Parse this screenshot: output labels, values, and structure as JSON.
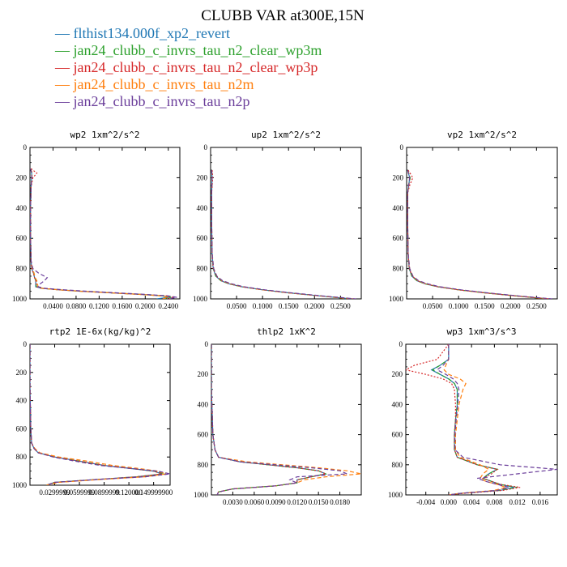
{
  "figure": {
    "title": "CLUBB VAR at300E,15N",
    "legend": [
      {
        "label": "flthist134.000f_xp2_revert",
        "color": "#1f77b4"
      },
      {
        "label": "jan24_clubb_c_invrs_tau_n2_clear_wp3m",
        "color": "#2ca02c"
      },
      {
        "label": "jan24_clubb_c_invrs_tau_n2_clear_wp3p",
        "color": "#d62728"
      },
      {
        "label": "jan24_clubb_c_invrs_tau_n2m",
        "color": "#ff7f0e"
      },
      {
        "label": "jan24_clubb_c_invrs_tau_n2p",
        "color": "#6a3d9a"
      }
    ],
    "legend_dash": "—"
  },
  "chart_data": [
    {
      "type": "line",
      "title": "wp2  1xm^2/s^2",
      "xlim": [
        0,
        0.26
      ],
      "ylim": [
        1000,
        0
      ],
      "y_inverted": true,
      "x_ticks": [
        0.04,
        0.08,
        0.12,
        0.16,
        0.2,
        0.24
      ],
      "x_tick_labels": [
        "0.0400",
        "0.0800",
        "0.1200",
        "0.1600",
        "0.2000",
        "0.2400"
      ],
      "y_ticks": [
        0,
        200,
        400,
        600,
        800,
        1000
      ],
      "y_tick_labels": [
        "0",
        "200",
        "400",
        "600",
        "800",
        "1000"
      ],
      "y": [
        140,
        170,
        200,
        260,
        400,
        600,
        750,
        800,
        830,
        860,
        880,
        900,
        920,
        930,
        940,
        950,
        960,
        970,
        980,
        990,
        1000
      ],
      "series": [
        {
          "x": [
            0.001,
            0.003,
            0.003,
            0.002,
            0.001,
            0.001,
            0.002,
            0.003,
            0.006,
            0.008,
            0.01,
            0.01,
            0.01,
            0.02,
            0.05,
            0.09,
            0.14,
            0.19,
            0.23,
            0.24,
            0.22
          ]
        },
        {
          "x": [
            0.001,
            0.004,
            0.003,
            0.002,
            0.001,
            0.001,
            0.002,
            0.004,
            0.007,
            0.008,
            0.011,
            0.011,
            0.011,
            0.02,
            0.05,
            0.09,
            0.14,
            0.19,
            0.23,
            0.245,
            0.23
          ]
        },
        {
          "x": [
            0.002,
            0.012,
            0.005,
            0.002,
            0.001,
            0.001,
            0.002,
            0.003,
            0.006,
            0.008,
            0.01,
            0.011,
            0.012,
            0.02,
            0.05,
            0.09,
            0.14,
            0.19,
            0.24,
            0.25,
            0.24
          ]
        },
        {
          "x": [
            0.001,
            0.004,
            0.003,
            0.002,
            0.001,
            0.001,
            0.002,
            0.004,
            0.007,
            0.009,
            0.012,
            0.013,
            0.014,
            0.021,
            0.05,
            0.09,
            0.14,
            0.19,
            0.23,
            0.24,
            0.23
          ]
        },
        {
          "x": [
            0.001,
            0.003,
            0.003,
            0.002,
            0.001,
            0.001,
            0.002,
            0.005,
            0.015,
            0.03,
            0.025,
            0.018,
            0.014,
            0.025,
            0.06,
            0.1,
            0.15,
            0.2,
            0.24,
            0.255,
            0.24
          ]
        }
      ]
    },
    {
      "type": "line",
      "title": "up2  1xm^2/s^2",
      "xlim": [
        0,
        0.29
      ],
      "ylim": [
        1000,
        0
      ],
      "y_inverted": true,
      "x_ticks": [
        0.05,
        0.1,
        0.15,
        0.2,
        0.25
      ],
      "x_tick_labels": [
        "0.0500",
        "0.1000",
        "0.1500",
        "0.2000",
        "0.2500"
      ],
      "y_ticks": [
        0,
        200,
        400,
        600,
        800,
        1000
      ],
      "y_tick_labels": [
        "0",
        "200",
        "400",
        "600",
        "800",
        "1000"
      ],
      "y": [
        150,
        200,
        300,
        500,
        700,
        800,
        850,
        880,
        900,
        920,
        940,
        960,
        980,
        1000
      ],
      "series": [
        {
          "x": [
            0.002,
            0.003,
            0.002,
            0.002,
            0.003,
            0.005,
            0.01,
            0.02,
            0.035,
            0.06,
            0.1,
            0.15,
            0.21,
            0.27
          ]
        },
        {
          "x": [
            0.002,
            0.003,
            0.002,
            0.002,
            0.003,
            0.005,
            0.01,
            0.02,
            0.035,
            0.06,
            0.1,
            0.15,
            0.21,
            0.27
          ]
        },
        {
          "x": [
            0.003,
            0.004,
            0.002,
            0.002,
            0.003,
            0.005,
            0.011,
            0.021,
            0.036,
            0.06,
            0.1,
            0.15,
            0.21,
            0.275
          ]
        },
        {
          "x": [
            0.002,
            0.003,
            0.002,
            0.002,
            0.003,
            0.006,
            0.012,
            0.022,
            0.038,
            0.062,
            0.1,
            0.15,
            0.21,
            0.27
          ]
        },
        {
          "x": [
            0.002,
            0.003,
            0.002,
            0.002,
            0.003,
            0.006,
            0.012,
            0.023,
            0.04,
            0.064,
            0.105,
            0.155,
            0.215,
            0.28
          ]
        }
      ]
    },
    {
      "type": "line",
      "title": "vp2  1xm^2/s^2",
      "xlim": [
        0,
        0.29
      ],
      "ylim": [
        1000,
        0
      ],
      "y_inverted": true,
      "x_ticks": [
        0.05,
        0.1,
        0.15,
        0.2,
        0.25
      ],
      "x_tick_labels": [
        "0.0500",
        "0.1000",
        "0.1500",
        "0.2000",
        "0.2500"
      ],
      "y_ticks": [
        0,
        200,
        400,
        600,
        800,
        1000
      ],
      "y_tick_labels": [
        "0",
        "200",
        "400",
        "600",
        "800",
        "1000"
      ],
      "y": [
        150,
        200,
        250,
        300,
        500,
        700,
        800,
        850,
        880,
        900,
        920,
        940,
        960,
        980,
        1000
      ],
      "series": [
        {
          "x": [
            0.002,
            0.006,
            0.004,
            0.002,
            0.002,
            0.003,
            0.005,
            0.01,
            0.02,
            0.035,
            0.06,
            0.1,
            0.15,
            0.21,
            0.27
          ]
        },
        {
          "x": [
            0.002,
            0.007,
            0.004,
            0.002,
            0.002,
            0.003,
            0.005,
            0.01,
            0.02,
            0.035,
            0.06,
            0.1,
            0.15,
            0.21,
            0.27
          ]
        },
        {
          "x": [
            0.003,
            0.012,
            0.006,
            0.002,
            0.002,
            0.003,
            0.005,
            0.011,
            0.021,
            0.036,
            0.06,
            0.1,
            0.15,
            0.21,
            0.275
          ]
        },
        {
          "x": [
            0.002,
            0.006,
            0.004,
            0.002,
            0.002,
            0.003,
            0.006,
            0.012,
            0.022,
            0.038,
            0.062,
            0.1,
            0.15,
            0.21,
            0.27
          ]
        },
        {
          "x": [
            0.002,
            0.006,
            0.004,
            0.002,
            0.002,
            0.003,
            0.006,
            0.012,
            0.023,
            0.04,
            0.064,
            0.105,
            0.155,
            0.215,
            0.28
          ]
        }
      ]
    },
    {
      "type": "line",
      "title": "rtp2  1E-6x(kg/kg)^2",
      "xlim": [
        0,
        0.17
      ],
      "ylim": [
        1000,
        0
      ],
      "y_inverted": true,
      "x_ticks": [
        0.03,
        0.06,
        0.09,
        0.12,
        0.15
      ],
      "x_tick_labels": [
        "0.0299999",
        "0.0599999",
        "0.0899999",
        "0.120000",
        "0.149999900"
      ],
      "y_ticks": [
        0,
        200,
        400,
        600,
        800,
        1000
      ],
      "y_tick_labels": [
        "0",
        "200",
        "400",
        "600",
        "800",
        "1000"
      ],
      "y": [
        0,
        300,
        600,
        700,
        740,
        770,
        800,
        830,
        860,
        880,
        900,
        920,
        940,
        960,
        980,
        1000
      ],
      "series": [
        {
          "x": [
            0.0,
            0.0,
            0.001,
            0.002,
            0.005,
            0.01,
            0.03,
            0.06,
            0.09,
            0.12,
            0.15,
            0.16,
            0.13,
            0.08,
            0.03,
            0.02
          ]
        },
        {
          "x": [
            0.0,
            0.0,
            0.001,
            0.002,
            0.005,
            0.01,
            0.03,
            0.06,
            0.09,
            0.12,
            0.15,
            0.165,
            0.13,
            0.08,
            0.03,
            0.02
          ]
        },
        {
          "x": [
            0.0,
            0.0,
            0.001,
            0.002,
            0.005,
            0.01,
            0.03,
            0.06,
            0.09,
            0.12,
            0.15,
            0.16,
            0.13,
            0.08,
            0.03,
            0.02
          ]
        },
        {
          "x": [
            0.0,
            0.0,
            0.001,
            0.002,
            0.006,
            0.012,
            0.035,
            0.07,
            0.1,
            0.13,
            0.155,
            0.165,
            0.14,
            0.085,
            0.035,
            0.02
          ]
        },
        {
          "x": [
            0.0,
            0.0,
            0.001,
            0.002,
            0.005,
            0.01,
            0.028,
            0.055,
            0.085,
            0.12,
            0.155,
            0.17,
            0.14,
            0.08,
            0.03,
            0.02
          ]
        }
      ]
    },
    {
      "type": "line",
      "title": "thlp2  1xK^2",
      "xlim": [
        0,
        0.021
      ],
      "ylim": [
        1000,
        0
      ],
      "y_inverted": true,
      "x_ticks": [
        0.003,
        0.006,
        0.009,
        0.012,
        0.015,
        0.018
      ],
      "x_tick_labels": [
        "0.0030",
        "0.0060",
        "0.0090",
        "0.0120",
        "0.0150",
        "0.0180"
      ],
      "y_ticks": [
        0,
        200,
        400,
        600,
        800,
        1000
      ],
      "y_tick_labels": [
        "0",
        "200",
        "400",
        "600",
        "800",
        "1000"
      ],
      "y": [
        0,
        300,
        600,
        700,
        750,
        780,
        800,
        820,
        840,
        860,
        880,
        900,
        920,
        940,
        960,
        980,
        1000
      ],
      "series": [
        {
          "x": [
            0.0,
            0.0,
            0.0002,
            0.0005,
            0.001,
            0.004,
            0.008,
            0.012,
            0.015,
            0.016,
            0.014,
            0.012,
            0.012,
            0.009,
            0.003,
            0.001,
            0.0008
          ]
        },
        {
          "x": [
            0.0,
            0.0,
            0.0002,
            0.0005,
            0.001,
            0.004,
            0.008,
            0.012,
            0.015,
            0.016,
            0.014,
            0.012,
            0.012,
            0.009,
            0.003,
            0.001,
            0.0008
          ]
        },
        {
          "x": [
            0.0,
            0.0,
            0.0002,
            0.0005,
            0.001,
            0.004,
            0.008,
            0.012,
            0.015,
            0.016,
            0.014,
            0.012,
            0.012,
            0.009,
            0.003,
            0.001,
            0.0008
          ]
        },
        {
          "x": [
            0.0,
            0.0,
            0.0002,
            0.0005,
            0.001,
            0.005,
            0.01,
            0.015,
            0.019,
            0.021,
            0.016,
            0.013,
            0.012,
            0.009,
            0.003,
            0.001,
            0.0008
          ]
        },
        {
          "x": [
            0.0,
            0.0,
            0.0002,
            0.0005,
            0.001,
            0.004,
            0.009,
            0.014,
            0.018,
            0.019,
            0.012,
            0.011,
            0.012,
            0.009,
            0.003,
            0.001,
            0.0008
          ]
        }
      ]
    },
    {
      "type": "line",
      "title": "wp3  1xm^3/s^3",
      "xlim": [
        -0.0075,
        0.019
      ],
      "ylim": [
        1000,
        0
      ],
      "y_inverted": true,
      "x_ticks": [
        -0.004,
        0.0,
        0.004,
        0.008,
        0.012,
        0.016
      ],
      "x_tick_labels": [
        "-0.004",
        "0.000",
        "0.004",
        "0.008",
        "0.012",
        "0.016"
      ],
      "y_ticks": [
        0,
        200,
        400,
        600,
        800,
        1000
      ],
      "y_tick_labels": [
        "0",
        "200",
        "400",
        "600",
        "800",
        "1000"
      ],
      "y": [
        0,
        100,
        140,
        170,
        200,
        230,
        260,
        300,
        400,
        500,
        600,
        700,
        750,
        800,
        830,
        860,
        890,
        910,
        930,
        950,
        970,
        990,
        1000
      ],
      "series": [
        {
          "x": [
            0.0,
            0.0,
            -0.0015,
            -0.003,
            -0.0015,
            0.0,
            0.001,
            0.0015,
            0.0015,
            0.0012,
            0.001,
            0.001,
            0.0015,
            0.005,
            0.0085,
            0.007,
            0.006,
            0.0075,
            0.009,
            0.0115,
            0.009,
            0.002,
            0.0
          ]
        },
        {
          "x": [
            0.0,
            0.0,
            -0.0015,
            -0.0028,
            -0.0015,
            0.0,
            0.001,
            0.0015,
            0.0015,
            0.0012,
            0.001,
            0.001,
            0.0015,
            0.005,
            0.0085,
            0.007,
            0.006,
            0.0075,
            0.009,
            0.012,
            0.009,
            0.002,
            0.0
          ]
        },
        {
          "x": [
            0.0,
            -0.002,
            -0.006,
            -0.0075,
            -0.004,
            -0.001,
            0.0005,
            0.001,
            0.0012,
            0.0012,
            0.001,
            0.001,
            0.0015,
            0.005,
            0.0085,
            0.0075,
            0.006,
            0.0075,
            0.009,
            0.0125,
            0.0095,
            0.0025,
            0.0
          ]
        },
        {
          "x": [
            0.0,
            0.0,
            -0.0005,
            -0.0008,
            0.0,
            0.002,
            0.003,
            0.0025,
            0.0018,
            0.0015,
            0.0012,
            0.0012,
            0.002,
            0.0055,
            0.007,
            0.006,
            0.0055,
            0.0065,
            0.0085,
            0.01,
            0.008,
            0.002,
            0.0
          ]
        },
        {
          "x": [
            0.0,
            0.0,
            -0.001,
            -0.002,
            -0.0005,
            0.0008,
            0.0015,
            0.0018,
            0.0016,
            0.0013,
            0.0011,
            0.0011,
            0.0025,
            0.009,
            0.019,
            0.012,
            0.005,
            0.0065,
            0.0085,
            0.0105,
            0.0085,
            0.002,
            0.0
          ]
        }
      ]
    }
  ]
}
